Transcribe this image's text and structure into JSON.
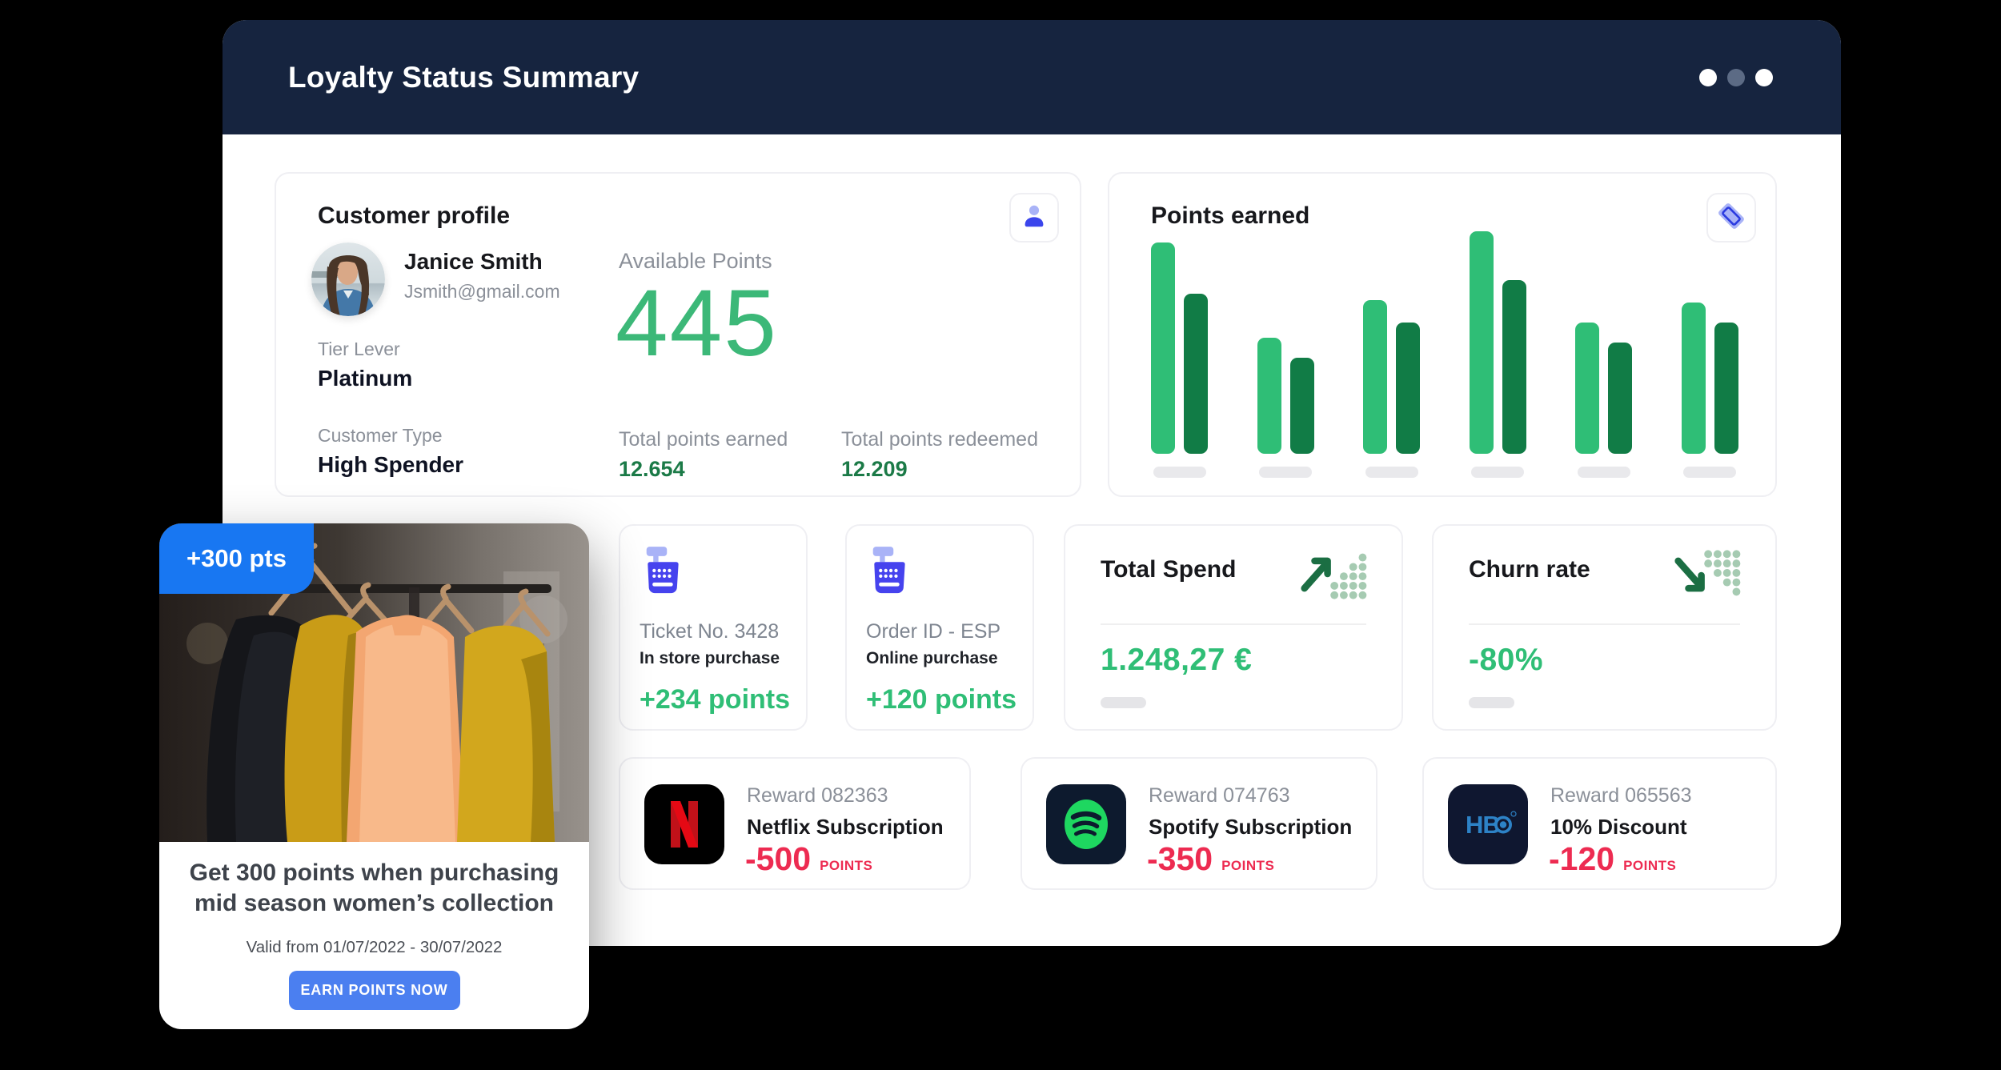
{
  "window": {
    "title": "Loyalty Status Summary",
    "dot_colors": [
      "#FFFFFF",
      "#5C6B85",
      "#FFFFFF"
    ]
  },
  "customer_profile": {
    "title": "Customer profile",
    "name": "Janice Smith",
    "email": "Jsmith@gmail.com",
    "tier_label": "Tier Lever",
    "tier_value": "Platinum",
    "customer_type_label": "Customer Type",
    "customer_type_value": "High Spender",
    "available_points_label": "Available Points",
    "available_points_value": "445",
    "earned_label": "Total points earned",
    "earned_value": "12.654",
    "redeemed_label": "Total points redeemed",
    "redeemed_value": "12.209"
  },
  "chart_data": {
    "type": "bar",
    "title": "Points earned",
    "categories": [
      "",
      "",
      "",
      "",
      "",
      ""
    ],
    "series": [
      {
        "name": "earned",
        "color": "#2FBE76",
        "values": [
          95,
          52,
          69,
          100,
          59,
          68
        ]
      },
      {
        "name": "redeemed",
        "color": "#117C46",
        "values": [
          72,
          43,
          59,
          78,
          50,
          59
        ]
      }
    ],
    "ylim": [
      0,
      100
    ],
    "xlabel": "",
    "ylabel": "",
    "grid": false,
    "legend": "none",
    "note": "values estimated as % of tallest bar; x-axis ticks are blank gray placeholders"
  },
  "transactions": [
    {
      "id_label": "Ticket No. 3428",
      "type_label": "In store purchase",
      "points": "+234 points"
    },
    {
      "id_label": "Order ID - ESP",
      "type_label": "Online purchase",
      "points": "+120 points"
    }
  ],
  "metrics": [
    {
      "title": "Total Spend",
      "value": "1.248,27 €",
      "trend": "up"
    },
    {
      "title": "Churn rate",
      "value": "-80%",
      "trend": "down"
    }
  ],
  "rewards": [
    {
      "brand": "netflix",
      "reward_id": "Reward 082363",
      "name": "Netflix Subscription",
      "points": "-500",
      "points_suffix": "POINTS"
    },
    {
      "brand": "spotify",
      "reward_id": "Reward 074763",
      "name": "Spotify Subscription",
      "points": "-350",
      "points_suffix": "POINTS"
    },
    {
      "brand": "hbo",
      "reward_id": "Reward 065563",
      "name": "10% Discount",
      "points": "-120",
      "points_suffix": "POINTS"
    }
  ],
  "promo": {
    "badge": "+300 pts",
    "headline": "Get 300 points when purchasing mid season women’s collection",
    "validity": "Valid from 01/07/2022 - 30/07/2022",
    "cta": "EARN POINTS NOW"
  },
  "colors": {
    "background": "#000000",
    "header": "#16243F",
    "green_bright": "#2FBE76",
    "green_big_number": "#3CB878",
    "green_dark_bar": "#117C46",
    "green_deep_text": "#1B7A47",
    "trend_arrow_green": "#1B6E43",
    "trend_dots_sage": "#A6CBB2",
    "icon_blue": "#4643EE",
    "icon_periwinkle": "#A9B3F7",
    "promo_badge_blue": "#1877F2",
    "cta_blue": "#4B7FF0",
    "points_red": "#ED2B51",
    "netflix_red": "#E50914",
    "spotify_green": "#1ED760",
    "hbo_blue": "#2D82C6",
    "text_dark": "#17181C",
    "text_gray": "#8B9099"
  }
}
